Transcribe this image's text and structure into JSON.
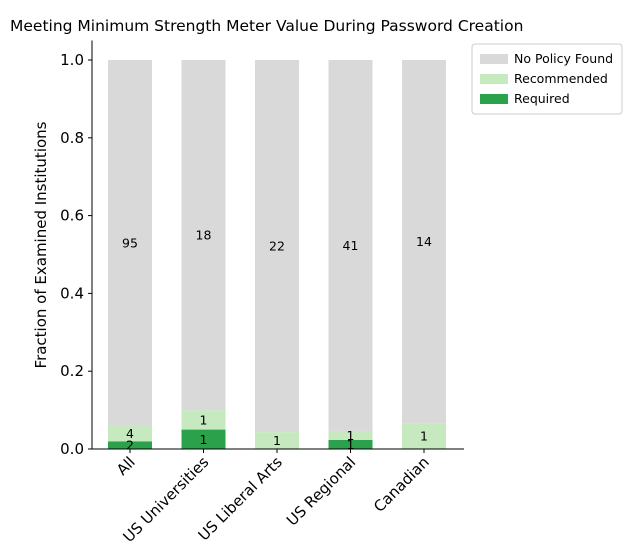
{
  "chart_data": {
    "type": "bar",
    "stacked": true,
    "normalized": true,
    "title": "Meeting Minimum Strength Meter Value During Password Creation",
    "xlabel": "",
    "ylabel": "Fraction of Examined Institutions",
    "ylim": [
      0,
      1.05
    ],
    "yticks": [
      "0.0",
      "0.2",
      "0.4",
      "0.6",
      "0.8",
      "1.0"
    ],
    "grid": false,
    "legend_position": "top-right",
    "categories": [
      "All",
      "US Universities",
      "US Liberal Arts",
      "US Regional",
      "Canadian"
    ],
    "series": [
      {
        "name": "Required",
        "color": "#2ca14b",
        "counts": [
          2,
          1,
          0,
          1,
          0
        ],
        "fractions": [
          0.0198,
          0.05,
          0.0,
          0.0233,
          0.0
        ],
        "labels": [
          "2",
          "1",
          "",
          "1",
          ""
        ]
      },
      {
        "name": "Recommended",
        "color": "#c7e9c0",
        "counts": [
          4,
          1,
          1,
          1,
          1
        ],
        "fractions": [
          0.0396,
          0.05,
          0.0435,
          0.0233,
          0.0667
        ],
        "labels": [
          "4",
          "1",
          "1",
          "1",
          "1"
        ]
      },
      {
        "name": "No Policy Found",
        "color": "#d9d9d9",
        "counts": [
          95,
          18,
          22,
          41,
          14
        ],
        "fractions": [
          0.9406,
          0.9,
          0.9565,
          0.9535,
          0.9333
        ],
        "labels": [
          "95",
          "18",
          "22",
          "41",
          "14"
        ]
      }
    ],
    "legend": [
      "No Policy Found",
      "Recommended",
      "Required"
    ]
  }
}
